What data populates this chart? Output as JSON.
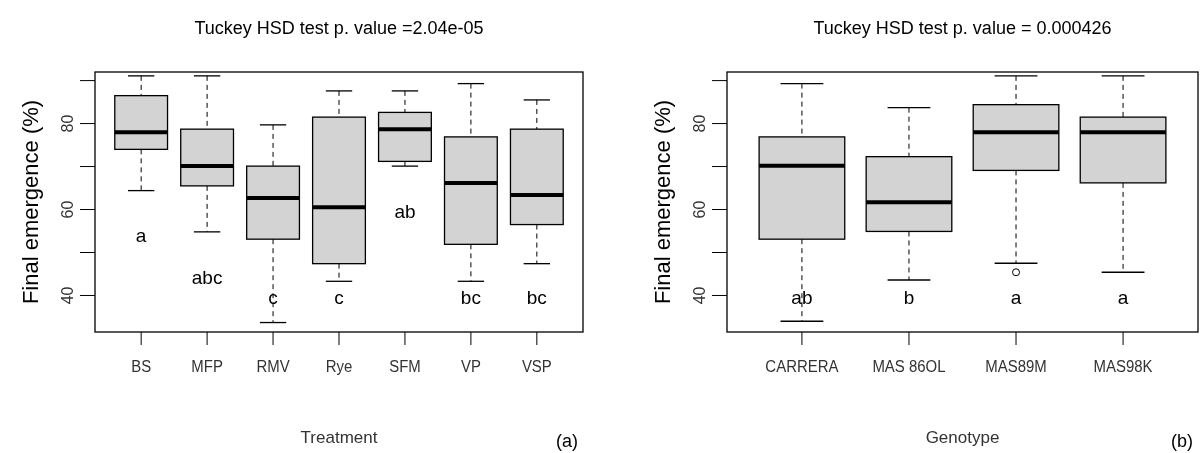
{
  "chart_data": [
    {
      "type": "box",
      "title": "Tuckey HSD test p. value =2.04e-05",
      "xlabel": "Treatment",
      "ylabel": "Final emergence (%)",
      "categories": [
        "BS",
        "MFP",
        "RMV",
        "Rye",
        "SFM",
        "VP",
        "VSP"
      ],
      "color": "#d3d3d3",
      "ylim": [
        31.5,
        92
      ],
      "yticks": [
        40,
        {
          "value": 50,
          "label": null
        },
        60,
        {
          "value": 70,
          "label": null
        },
        80,
        {
          "value": 90,
          "label": null
        }
      ],
      "grid": false,
      "boxes": [
        {
          "low": 64.4,
          "q1": 74.0,
          "median": 78.0,
          "q3": 86.5,
          "high": 91.1
        },
        {
          "low": 54.8,
          "q1": 65.5,
          "median": 70.1,
          "q3": 78.7,
          "high": 91.1
        },
        {
          "low": 33.7,
          "q1": 53.1,
          "median": 62.7,
          "q3": 70.1,
          "high": 79.7
        },
        {
          "low": 43.3,
          "q1": 47.4,
          "median": 60.5,
          "q3": 81.5,
          "high": 87.6
        },
        {
          "low": 70.1,
          "q1": 71.2,
          "median": 78.7,
          "q3": 82.6,
          "high": 87.6
        },
        {
          "low": 43.3,
          "q1": 51.9,
          "median": 66.2,
          "q3": 76.9,
          "high": 89.3
        },
        {
          "low": 47.4,
          "q1": 56.5,
          "median": 63.4,
          "q3": 78.7,
          "high": 85.5
        }
      ],
      "annotations": [
        "a",
        "abc",
        "c",
        "c",
        "ab",
        "bc",
        "bc",
        "(a)"
      ]
    },
    {
      "type": "box",
      "title": "Tuckey HSD test p. value = 0.000426",
      "xlabel": "Genotype",
      "ylabel": "Final emergence (%)",
      "categories": [
        "CARRERA",
        "MAS 86OL",
        "MAS89M",
        "MAS98K"
      ],
      "color": "#d3d3d3",
      "ylim": [
        31.5,
        92
      ],
      "yticks": [
        40,
        {
          "value": 50,
          "label": null
        },
        60,
        {
          "value": 70,
          "label": null
        },
        80,
        {
          "value": 90,
          "label": null
        }
      ],
      "grid": false,
      "boxes": [
        {
          "low": 34.0,
          "q1": 53.1,
          "median": 70.2,
          "q3": 76.9,
          "high": 89.3
        },
        {
          "low": 43.6,
          "q1": 54.9,
          "median": 61.7,
          "q3": 72.3,
          "high": 83.7
        },
        {
          "low": 47.5,
          "q1": 69.1,
          "median": 78.0,
          "q3": 84.4,
          "high": 91.1,
          "outliers": [
            45.4
          ]
        },
        {
          "low": 45.4,
          "q1": 66.2,
          "median": 78.0,
          "q3": 81.5,
          "high": 91.1
        }
      ],
      "annotations": [
        "ab",
        "b",
        "a",
        "a",
        "(b)"
      ]
    }
  ]
}
